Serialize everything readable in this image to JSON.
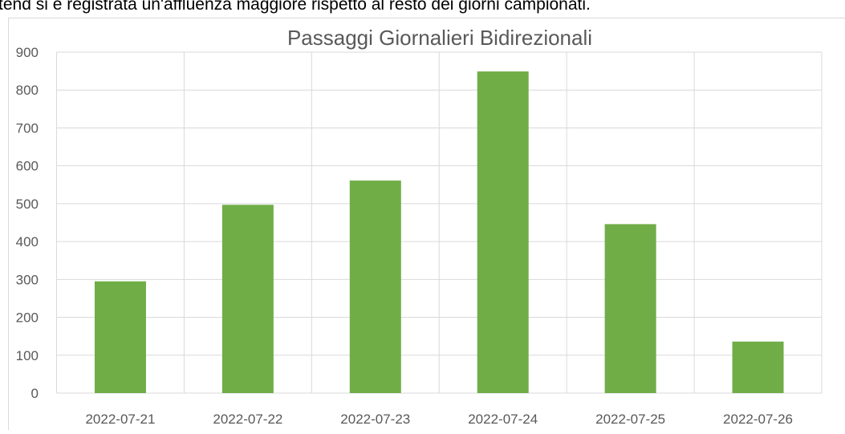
{
  "caption": "tend si è registrata un'affluenza maggiore rispetto al resto dei giorni campionati.",
  "chart_data": {
    "type": "bar",
    "title": "Passaggi Giornalieri Bidirezionali",
    "categories": [
      "2022-07-21",
      "2022-07-22",
      "2022-07-23",
      "2022-07-24",
      "2022-07-25",
      "2022-07-26"
    ],
    "values": [
      295,
      497,
      561,
      849,
      446,
      136
    ],
    "color": "#70ad47",
    "ylim": [
      0,
      900
    ],
    "yticks": [
      0,
      100,
      200,
      300,
      400,
      500,
      600,
      700,
      800,
      900
    ],
    "grid": true
  }
}
